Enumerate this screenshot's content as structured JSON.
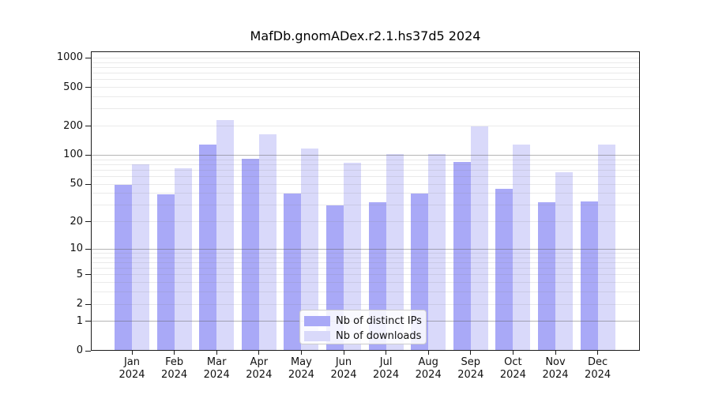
{
  "chart_data": {
    "type": "bar",
    "title": "MafDb.gnomADex.r2.1.hs37d5 2024",
    "y_scale": "log1p",
    "grid": true,
    "categories": [
      {
        "month": "Jan",
        "year": "2024"
      },
      {
        "month": "Feb",
        "year": "2024"
      },
      {
        "month": "Mar",
        "year": "2024"
      },
      {
        "month": "Apr",
        "year": "2024"
      },
      {
        "month": "May",
        "year": "2024"
      },
      {
        "month": "Jun",
        "year": "2024"
      },
      {
        "month": "Jul",
        "year": "2024"
      },
      {
        "month": "Aug",
        "year": "2024"
      },
      {
        "month": "Sep",
        "year": "2024"
      },
      {
        "month": "Oct",
        "year": "2024"
      },
      {
        "month": "Nov",
        "year": "2024"
      },
      {
        "month": "Dec",
        "year": "2024"
      }
    ],
    "series": [
      {
        "name": "Nb of distinct IPs",
        "color": "#a9a9f7",
        "values": [
          49,
          39,
          130,
          92,
          40,
          30,
          32,
          40,
          85,
          45,
          32,
          33
        ]
      },
      {
        "name": "Nb of downloads",
        "color": "#d9d9fa",
        "values": [
          80,
          73,
          230,
          165,
          118,
          83,
          102,
          102,
          200,
          129,
          66,
          128
        ]
      }
    ],
    "y_axis": {
      "ticks": [
        0,
        1,
        2,
        5,
        10,
        20,
        50,
        100,
        200,
        500,
        1000
      ],
      "max": 1171,
      "major_gridlines": [
        1,
        10,
        100
      ]
    },
    "legend": {
      "position": "bottom-center",
      "items": [
        "Nb of distinct IPs",
        "Nb of downloads"
      ]
    }
  }
}
